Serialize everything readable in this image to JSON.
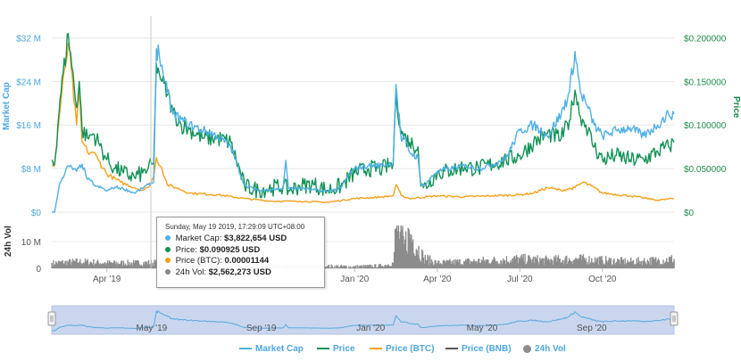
{
  "colors": {
    "market_cap": "#4fb0e5",
    "price": "#129257",
    "price_btc": "#f5a01b",
    "price_bnb": "#555555",
    "volume": "#8c8c8c",
    "navigator_fill": "#c9d6ee",
    "navigator_line": "#5aa9de"
  },
  "tooltip": {
    "date": "Sunday, May 19 2019, 17:29:09 UTC+08:00",
    "rows": [
      {
        "label": "Market Cap:",
        "value": "$3,822,654 USD"
      },
      {
        "label": "Price:",
        "value": "$0.090925 USD"
      },
      {
        "label": "Price (BTC):",
        "value": "0.00001144"
      },
      {
        "label": "24h Vol:",
        "value": "$2,562,273 USD"
      }
    ]
  },
  "legend": {
    "market_cap": "Market Cap",
    "price": "Price",
    "price_btc": "Price (BTC)",
    "price_bnb": "Price (BNB)",
    "volume": "24h Vol"
  },
  "chart_data": [
    {
      "type": "line",
      "yaxis_left": {
        "title": "Market Cap",
        "ticks": [
          "$0",
          "$8 M",
          "$16 M",
          "$24 M",
          "$32 M"
        ],
        "values": [
          0,
          8,
          16,
          24,
          32
        ],
        "unit": "M USD"
      },
      "yaxis_right": {
        "title": "Price",
        "ticks": [
          "$0",
          "$0.050000",
          "$0.100000",
          "$0.150000",
          "$0.200000"
        ],
        "values": [
          0,
          0.05,
          0.1,
          0.15,
          0.2
        ]
      },
      "xaxis": {
        "ticks": [
          "Apr '19",
          "Jan '20",
          "Apr '20",
          "Jul '20",
          "Oct '20"
        ],
        "tick_months": [
          3,
          12,
          15,
          18,
          21
        ],
        "range_months": [
          1.0,
          23.6
        ]
      },
      "series": [
        {
          "name": "Market Cap",
          "axis": "left",
          "x": [
            1.0,
            1.1,
            1.3,
            1.6,
            1.9,
            2.1,
            2.3,
            2.4,
            2.6,
            2.8,
            3.0,
            3.3,
            3.6,
            4.0,
            4.5,
            4.7,
            4.8,
            4.9,
            5.0,
            5.1,
            5.2,
            5.4,
            5.7,
            6.0,
            6.5,
            7.0,
            7.5,
            8.0,
            8.5,
            9.0,
            9.4,
            9.5,
            9.6,
            10.0,
            10.5,
            11.0,
            11.5,
            11.8,
            12.0,
            12.5,
            13.0,
            13.4,
            13.5,
            13.7,
            13.8,
            14.0,
            14.3,
            14.4,
            14.5,
            15.0,
            15.5,
            16.0,
            16.5,
            17.0,
            17.5,
            18.0,
            18.5,
            19.0,
            19.5,
            19.8,
            20.0,
            20.2,
            20.4,
            20.7,
            21.0,
            21.5,
            22.0,
            22.5,
            23.0,
            23.4,
            23.6
          ],
          "values": [
            0,
            0,
            5.5,
            8.5,
            7.5,
            8.8,
            6.0,
            5.8,
            4.7,
            4.5,
            3.9,
            4.6,
            4.3,
            3.5,
            5.0,
            5.5,
            30.0,
            29.0,
            27.0,
            24.0,
            22.0,
            18.0,
            17.0,
            16.0,
            15.0,
            14.0,
            12.0,
            5.0,
            3.9,
            4.2,
            4.3,
            9.5,
            4.3,
            4.4,
            4.1,
            3.8,
            4.4,
            7.0,
            8.0,
            8.5,
            8.6,
            9.0,
            23.5,
            13.0,
            13.5,
            11.0,
            10.0,
            5.0,
            4.8,
            7.5,
            8.0,
            8.5,
            8.0,
            8.7,
            10.0,
            15.0,
            16.0,
            14.0,
            18.0,
            22.0,
            29.5,
            22.0,
            20.0,
            16.0,
            14.0,
            15.0,
            15.5,
            14.0,
            16.0,
            18.0,
            18.0
          ]
        },
        {
          "name": "Price",
          "axis": "right",
          "x": [
            1.0,
            1.1,
            1.3,
            1.6,
            1.9,
            2.0,
            2.1,
            2.3,
            2.5,
            2.7,
            3.0,
            3.3,
            3.6,
            4.0,
            4.3,
            4.5,
            4.7,
            4.8,
            4.9,
            5.0,
            5.2,
            5.4,
            5.7,
            6.0,
            6.5,
            7.0,
            7.5,
            8.0,
            8.5,
            9.0,
            9.4,
            9.6,
            10.0,
            10.5,
            11.0,
            11.5,
            12.0,
            12.5,
            13.0,
            13.4,
            13.5,
            13.7,
            14.0,
            14.3,
            14.4,
            14.5,
            15.0,
            15.5,
            16.0,
            16.5,
            17.0,
            17.5,
            18.0,
            18.5,
            19.0,
            19.5,
            19.8,
            20.0,
            20.2,
            20.4,
            20.7,
            21.0,
            21.5,
            22.0,
            22.5,
            23.0,
            23.4,
            23.6
          ],
          "values": [
            0.06,
            0.055,
            0.13,
            0.205,
            0.12,
            0.15,
            0.095,
            0.085,
            0.09,
            0.08,
            0.06,
            0.05,
            0.045,
            0.04,
            0.045,
            0.05,
            0.055,
            0.17,
            0.16,
            0.15,
            0.135,
            0.115,
            0.1,
            0.095,
            0.085,
            0.085,
            0.08,
            0.03,
            0.025,
            0.028,
            0.03,
            0.025,
            0.03,
            0.032,
            0.025,
            0.03,
            0.045,
            0.05,
            0.05,
            0.055,
            0.135,
            0.09,
            0.08,
            0.075,
            0.03,
            0.028,
            0.045,
            0.048,
            0.052,
            0.05,
            0.055,
            0.06,
            0.065,
            0.08,
            0.09,
            0.085,
            0.105,
            0.14,
            0.11,
            0.1,
            0.075,
            0.06,
            0.065,
            0.06,
            0.06,
            0.07,
            0.075,
            0.08
          ]
        },
        {
          "name": "Price (BTC)",
          "axis": "right",
          "scale_note": "drawn on shared plot, scaled to market cap axis",
          "x": [
            1.0,
            1.1,
            1.3,
            1.6,
            1.9,
            2.0,
            2.1,
            2.3,
            2.5,
            2.7,
            3.0,
            3.5,
            4.0,
            4.3,
            4.5,
            4.7,
            4.8,
            5.0,
            5.2,
            5.5,
            6.0,
            7.0,
            8.0,
            9.0,
            10.0,
            11.0,
            12.0,
            13.0,
            13.4,
            13.5,
            13.7,
            14.0,
            15.0,
            16.0,
            17.0,
            18.0,
            18.5,
            19.0,
            19.5,
            20.0,
            20.3,
            20.7,
            21.0,
            22.0,
            23.0,
            23.6
          ],
          "values": [
            8.5,
            8.5,
            19.0,
            31.0,
            16.0,
            22.0,
            13.0,
            11.0,
            11.0,
            9.5,
            7.0,
            5.5,
            4.5,
            4.0,
            4.5,
            6.5,
            10.0,
            8.0,
            5.0,
            4.5,
            3.5,
            3.2,
            2.5,
            2.0,
            2.0,
            1.8,
            2.5,
            2.8,
            3.0,
            5.0,
            3.0,
            2.5,
            3.0,
            2.8,
            3.0,
            3.2,
            3.5,
            4.5,
            4.0,
            4.5,
            5.5,
            4.5,
            3.5,
            3.0,
            2.2,
            2.5
          ]
        },
        {
          "name": "24h Vol",
          "axis": "volume",
          "ticks": [
            "0",
            "10 M"
          ],
          "x": [
            1.0,
            2.0,
            3.0,
            4.0,
            5.0,
            6.0,
            7.0,
            8.0,
            9.0,
            10.0,
            11.0,
            12.0,
            13.0,
            13.4,
            13.5,
            13.8,
            14.0,
            14.5,
            15.0,
            16.0,
            17.0,
            18.0,
            19.0,
            20.0,
            21.0,
            22.0,
            23.0,
            23.6
          ],
          "values": [
            2.0,
            2.5,
            2.0,
            2.0,
            2.2,
            1.5,
            1.5,
            1.0,
            1.0,
            0.8,
            0.8,
            0.6,
            1.0,
            2.0,
            15.0,
            9.0,
            13.0,
            4.0,
            2.0,
            2.5,
            3.0,
            3.5,
            3.0,
            3.5,
            3.0,
            2.5,
            3.0,
            3.5
          ]
        }
      ]
    },
    {
      "type": "area",
      "role": "navigator",
      "xaxis": {
        "ticks": [
          "May '19",
          "Sep '19",
          "Jan '20",
          "May '20",
          "Sep '20"
        ],
        "tick_months": [
          4,
          8,
          12,
          16,
          20
        ]
      }
    }
  ]
}
